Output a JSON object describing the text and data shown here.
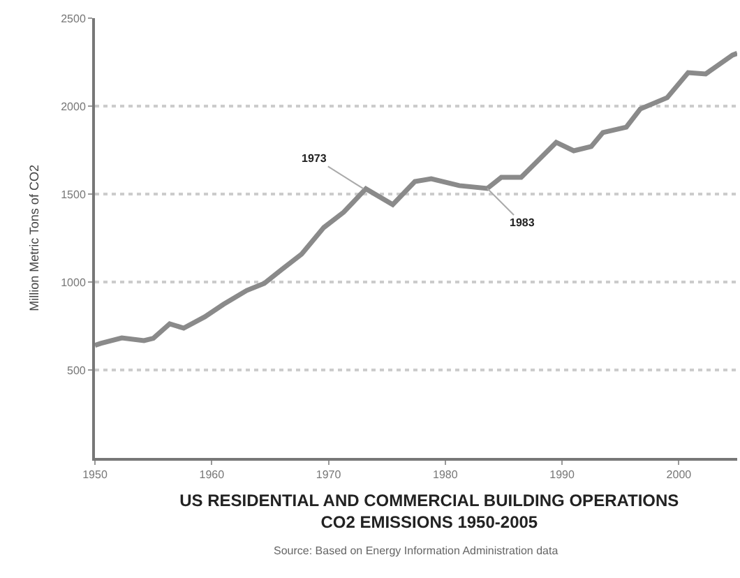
{
  "chart_data": {
    "type": "line",
    "title": "US RESIDENTIAL AND COMMERCIAL BUILDING OPERATIONS\nCO2 EMISSIONS 1950-2005",
    "ylabel": "Million Metric Tons of CO2",
    "annotations": [
      {
        "text": "1973",
        "x": 1973,
        "y": 1530
      },
      {
        "text": "1983",
        "x": 1983.6,
        "y": 1532
      },
      "Source: Based on Energy Information Administration data"
    ],
    "series": [
      {
        "color": "#8a8a8a",
        "x": [
          1950,
          1950.5,
          1952.3,
          1954.2,
          1955,
          1956.4,
          1957.6,
          1959.4,
          1961,
          1963,
          1964.5,
          1966,
          1967.7,
          1969.6,
          1971.3,
          1973.2,
          1975.5,
          1977.4,
          1978.8,
          1981.2,
          1983.6,
          1984.8,
          1986.5,
          1989.5,
          1991,
          1992.5,
          1993.5,
          1995.5,
          1996.7,
          1999,
          2000.8,
          2002.3,
          2004.6,
          2005
        ],
        "values": [
          640,
          651,
          682,
          667,
          680,
          762,
          738,
          802,
          873,
          952,
          992,
          1071,
          1159,
          1310,
          1397,
          1530,
          1440,
          1571,
          1587,
          1548,
          1532,
          1595,
          1595,
          1794,
          1746,
          1770,
          1850,
          1880,
          1984,
          2048,
          2190,
          2183,
          2290,
          2300
        ]
      }
    ],
    "xlim": [
      1950,
      2005
    ],
    "xticks": [
      1950,
      1960,
      1970,
      1980,
      1990,
      2000
    ],
    "ylim": [
      0,
      2500
    ],
    "yticks": [
      500,
      1000,
      1500,
      2000,
      2500
    ],
    "grid": "y",
    "marker": "none",
    "line_style": "solid",
    "legend": false
  }
}
